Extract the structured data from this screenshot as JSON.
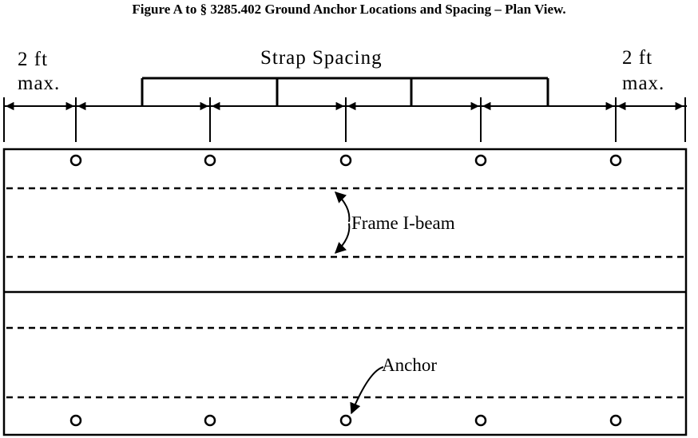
{
  "figure": {
    "title": "Figure A to § 3285.402 Ground Anchor Locations and Spacing – Plan View."
  },
  "labels": {
    "left_clearance_line1": "2 ft",
    "left_clearance_line2": "max.",
    "right_clearance_line1": "2 ft",
    "right_clearance_line2": "max.",
    "strap_spacing": "Strap Spacing",
    "frame_ibeam": "Frame I-beam",
    "anchor": "Anchor"
  }
}
